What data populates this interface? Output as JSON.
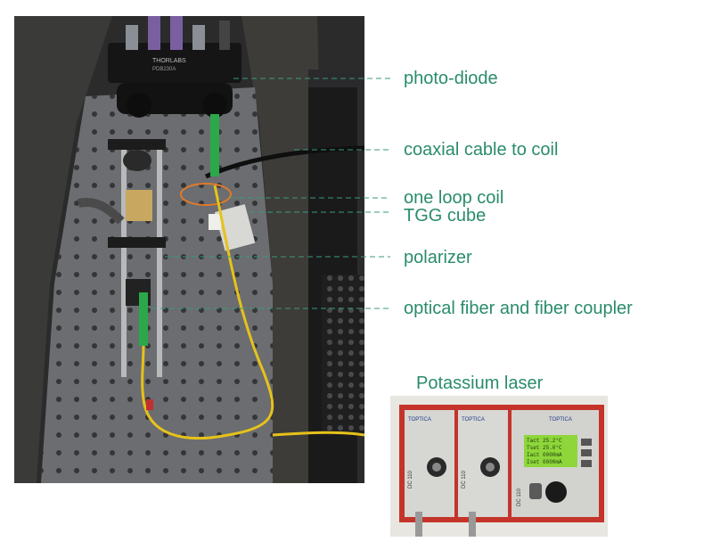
{
  "labels": {
    "photo_diode": "photo-diode",
    "coax": "coaxial cable to coil",
    "loop": "one loop coil",
    "tgg": "TGG cube",
    "polarizer": "polarizer",
    "fiber": "optical fiber and fiber coupler"
  },
  "laser_title": "Potassium laser",
  "device_text": {
    "brand1": "THORLABS",
    "model": "PDB230A",
    "toptica": "TOPTICA",
    "dc110_1": "DC 110",
    "dc110_2": "DC 110",
    "dc110_3": "DC 110",
    "lcd1": "Tact 25.2°C",
    "lcd2": "Tset 25.0°C",
    "lcd3": "Iact 0000mA",
    "lcd4": "Iset 0000mA"
  },
  "colors": {
    "label_green": "#2a8c6a",
    "leader_green": "#3a9a7a",
    "foam": "#3a3a38",
    "table": "#6b6d70",
    "fiber_yellow": "#e6c21a",
    "lcd_green": "#8fd63a",
    "laser_panel": "#d6d6d2",
    "laser_frame": "#c4342a"
  }
}
